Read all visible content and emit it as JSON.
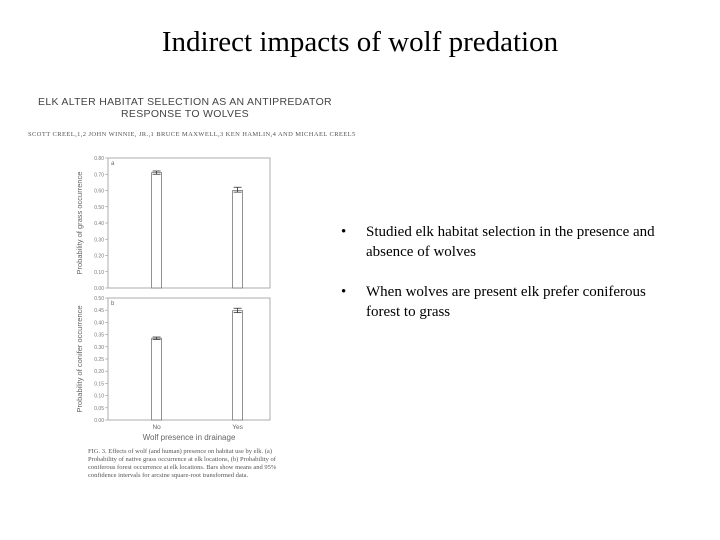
{
  "slide": {
    "title": "Indirect impacts of wolf predation",
    "bullets": [
      "Studied elk habitat selection  in the presence and absence of wolves",
      "When wolves are present elk prefer coniferous forest to grass"
    ],
    "bullet_glyph": "•"
  },
  "paper": {
    "title_line1": "ELK ALTER HABITAT SELECTION AS AN ANTIPREDATOR",
    "title_line2": "RESPONSE TO WOLVES",
    "authors": "SCOTT CREEL,1,2 JOHN WINNIE, JR.,1 BRUCE MAXWELL,3 KEN HAMLIN,4 AND MICHAEL CREEL5",
    "caption": "FIG. 3.   Effects of wolf (and human) presence on habitat use by elk. (a) Probability of native grass occurrence at elk locations, (b) Probability of coniferous forest occurrence at elk locations. Bars show means and 95% confidence intervals for arcsine square-root transformed data."
  },
  "chart_data": [
    {
      "type": "bar",
      "panel_label": "a",
      "categories": [
        "No",
        "Yes"
      ],
      "values": [
        0.71,
        0.6
      ],
      "ci": [
        [
          0.7,
          0.72
        ],
        [
          0.59,
          0.62
        ]
      ],
      "ylabel": "Probability of grass occurrence",
      "ylim": [
        0,
        0.8
      ],
      "yticks": [
        "0.00",
        "0.10",
        "0.20",
        "0.30",
        "0.40",
        "0.50",
        "0.60",
        "0.70",
        "0.80"
      ]
    },
    {
      "type": "bar",
      "panel_label": "b",
      "categories": [
        "No",
        "Yes"
      ],
      "values": [
        0.335,
        0.448
      ],
      "ci": [
        [
          0.33,
          0.34
        ],
        [
          0.44,
          0.458
        ]
      ],
      "ylabel": "Probability of conifer occurrence",
      "xlabel": "Wolf presence in drainage",
      "ylim": [
        0,
        0.5
      ],
      "yticks": [
        "0.00",
        "0.05",
        "0.10",
        "0.15",
        "0.20",
        "0.25",
        "0.30",
        "0.35",
        "0.40",
        "0.45",
        "0.50"
      ]
    }
  ]
}
